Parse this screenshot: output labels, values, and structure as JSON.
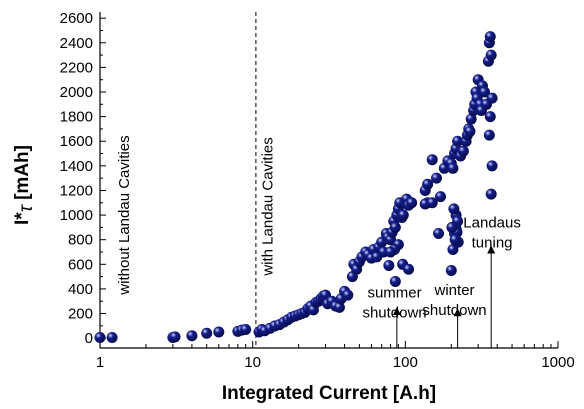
{
  "chart_data": {
    "type": "scatter",
    "xlabel": "Integrated Current [A.h]",
    "ylabel_main": "I*",
    "ylabel_tau": "τ",
    "ylabel_unit": " [mAh]",
    "xscale": "log",
    "xlim": [
      1,
      1000
    ],
    "ylim": [
      -80,
      2650
    ],
    "grid": false,
    "marker_color": "#141d8c",
    "x_ticks": [
      {
        "value": 1,
        "label": "1"
      },
      {
        "value": 10,
        "label": "10"
      },
      {
        "value": 100,
        "label": "100"
      },
      {
        "value": 1000,
        "label": "1000"
      }
    ],
    "y_ticks": [
      0,
      200,
      400,
      600,
      800,
      1000,
      1200,
      1400,
      1600,
      1800,
      2000,
      2200,
      2400,
      2600
    ],
    "vline_x": 10.5,
    "annotations": [
      {
        "text": "without Landau Cavities",
        "x": 1.55,
        "y": 1000,
        "rotate": true
      },
      {
        "text": "with Landau Cavities",
        "x": 13.5,
        "y": 1070,
        "rotate": true
      },
      {
        "lines": [
          "summer",
          "shutdown"
        ],
        "x": 85,
        "y": 330
      },
      {
        "lines": [
          "winter",
          "shutdown"
        ],
        "x": 210,
        "y": 350
      },
      {
        "lines": [
          "Landaus",
          "tuning"
        ],
        "x": 370,
        "y": 900
      }
    ],
    "arrows": [
      {
        "x": 88,
        "y_from": -80,
        "y_to": 220
      },
      {
        "x": 220,
        "y_from": -80,
        "y_to": 210
      },
      {
        "x": 365,
        "y_from": -80,
        "y_to": 720
      }
    ],
    "points": [
      [
        1.0,
        5
      ],
      [
        1.2,
        5
      ],
      [
        3.0,
        5
      ],
      [
        3.1,
        10
      ],
      [
        4.0,
        20
      ],
      [
        5.0,
        40
      ],
      [
        6.0,
        50
      ],
      [
        8.0,
        55
      ],
      [
        8.5,
        65
      ],
      [
        9.0,
        70
      ],
      [
        11,
        50
      ],
      [
        11.5,
        70
      ],
      [
        12,
        60
      ],
      [
        13,
        80
      ],
      [
        14,
        100
      ],
      [
        15,
        110
      ],
      [
        16,
        130
      ],
      [
        17,
        150
      ],
      [
        18,
        170
      ],
      [
        19,
        180
      ],
      [
        20,
        190
      ],
      [
        21,
        200
      ],
      [
        22,
        210
      ],
      [
        23,
        240
      ],
      [
        24,
        260
      ],
      [
        25,
        230
      ],
      [
        26,
        290
      ],
      [
        27,
        300
      ],
      [
        28,
        320
      ],
      [
        29,
        340
      ],
      [
        30,
        350
      ],
      [
        31,
        280
      ],
      [
        33,
        300
      ],
      [
        35,
        260
      ],
      [
        37,
        250
      ],
      [
        38,
        320
      ],
      [
        40,
        380
      ],
      [
        42,
        350
      ],
      [
        45,
        500
      ],
      [
        46,
        600
      ],
      [
        48,
        560
      ],
      [
        50,
        620
      ],
      [
        52,
        660
      ],
      [
        55,
        700
      ],
      [
        57,
        680
      ],
      [
        60,
        650
      ],
      [
        62,
        720
      ],
      [
        65,
        660
      ],
      [
        67,
        740
      ],
      [
        70,
        780
      ],
      [
        72,
        700
      ],
      [
        75,
        850
      ],
      [
        77,
        820
      ],
      [
        80,
        800
      ],
      [
        82,
        860
      ],
      [
        84,
        950
      ],
      [
        86,
        900
      ],
      [
        88,
        1000
      ],
      [
        90,
        1050
      ],
      [
        92,
        1100
      ],
      [
        95,
        980
      ],
      [
        97,
        1000
      ],
      [
        99,
        1100
      ],
      [
        100,
        1100
      ],
      [
        102,
        1130
      ],
      [
        105,
        1080
      ],
      [
        110,
        1100
      ],
      [
        86,
        460
      ],
      [
        90,
        760
      ],
      [
        96,
        600
      ],
      [
        85,
        720
      ],
      [
        80,
        700
      ],
      [
        78,
        590
      ],
      [
        105,
        560
      ],
      [
        150,
        1450
      ],
      [
        140,
        1100
      ],
      [
        135,
        1090
      ],
      [
        135,
        1200
      ],
      [
        140,
        1250
      ],
      [
        150,
        1100
      ],
      [
        160,
        1300
      ],
      [
        165,
        850
      ],
      [
        170,
        1150
      ],
      [
        180,
        1380
      ],
      [
        190,
        1440
      ],
      [
        200,
        1420
      ],
      [
        205,
        1380
      ],
      [
        210,
        1500
      ],
      [
        215,
        1540
      ],
      [
        220,
        1600
      ],
      [
        230,
        1480
      ],
      [
        240,
        1520
      ],
      [
        250,
        1600
      ],
      [
        255,
        1650
      ],
      [
        260,
        1700
      ],
      [
        265,
        1680
      ],
      [
        270,
        1780
      ],
      [
        280,
        1850
      ],
      [
        285,
        1900
      ],
      [
        290,
        2000
      ],
      [
        295,
        1950
      ],
      [
        300,
        2100
      ],
      [
        310,
        1900
      ],
      [
        315,
        1850
      ],
      [
        320,
        2050
      ],
      [
        330,
        2000
      ],
      [
        340,
        1900
      ],
      [
        350,
        2250
      ],
      [
        355,
        2400
      ],
      [
        360,
        2450
      ],
      [
        365,
        2300
      ],
      [
        370,
        1950
      ],
      [
        360,
        1800
      ],
      [
        355,
        1650
      ],
      [
        370,
        1400
      ],
      [
        365,
        1170
      ],
      [
        200,
        550
      ],
      [
        205,
        720
      ],
      [
        210,
        850
      ],
      [
        215,
        1000
      ],
      [
        220,
        950
      ],
      [
        215,
        890
      ],
      [
        218,
        860
      ],
      [
        222,
        780
      ],
      [
        212,
        800
      ],
      [
        202,
        900
      ],
      [
        208,
        1050
      ]
    ]
  }
}
